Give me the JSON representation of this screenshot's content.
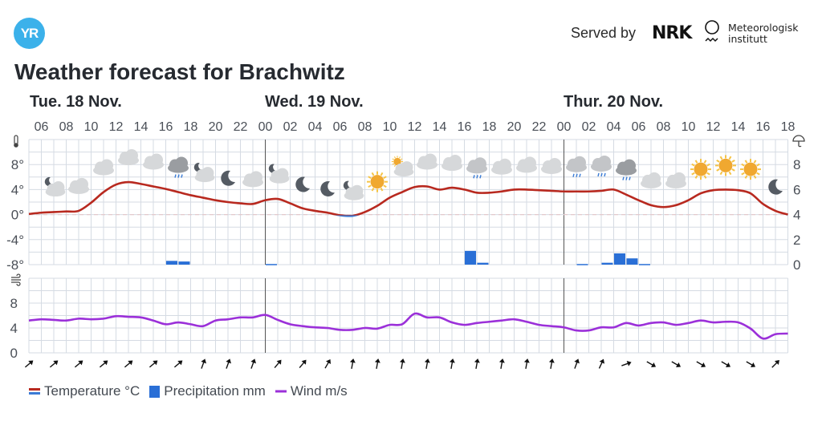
{
  "header": {
    "logo_text": "YR",
    "served_by": "Served by",
    "nrk_logo": "NRK",
    "met_logo_line1": "Meteorologisk",
    "met_logo_line2": "institutt",
    "title": "Weather forecast for Brachwitz"
  },
  "days": [
    "Tue. 18 Nov.",
    "Wed. 19 Nov.",
    "Thur. 20 Nov."
  ],
  "legend": {
    "temperature": "Temperature °C",
    "precipitation": "Precipitation mm",
    "wind": "Wind m/s"
  },
  "colors": {
    "temp_positive": "#b8291f",
    "temp_negative": "#3a7bd5",
    "precipitation": "#2a6fd6",
    "wind": "#9b30d9",
    "grid": "#d5dbe3",
    "logo": "#3bb1ea"
  },
  "chart_data": {
    "type": "line",
    "title": "Weather forecast for Brachwitz",
    "x_start": "Tue 18 Nov 05:00",
    "x_step_hours": 1,
    "hour_tick_labels": [
      "06",
      "08",
      "10",
      "12",
      "14",
      "16",
      "18",
      "20",
      "22",
      "00",
      "02",
      "04",
      "06",
      "08",
      "10",
      "12",
      "14",
      "16",
      "18",
      "20",
      "22",
      "00",
      "02",
      "04",
      "06",
      "08",
      "10",
      "12",
      "14",
      "16",
      "18"
    ],
    "temperature": {
      "name": "Temperature °C",
      "ylim": [
        -8,
        12
      ],
      "tick_labels": [
        "8°",
        "4°",
        "0°",
        "-4°",
        "-8°"
      ],
      "values": [
        0.1,
        0.3,
        0.4,
        0.5,
        0.6,
        1.9,
        3.6,
        4.8,
        5.2,
        4.9,
        4.5,
        4.1,
        3.6,
        3.1,
        2.7,
        2.3,
        2.0,
        1.8,
        1.7,
        2.3,
        2.5,
        1.8,
        1.0,
        0.6,
        0.3,
        -0.1,
        -0.2,
        0.4,
        1.4,
        2.7,
        3.6,
        4.4,
        4.5,
        4.0,
        4.3,
        4.0,
        3.5,
        3.5,
        3.7,
        4.0,
        4.0,
        3.9,
        3.8,
        3.7,
        3.7,
        3.7,
        3.8,
        4.0,
        3.2,
        2.3,
        1.5,
        1.2,
        1.5,
        2.3,
        3.4,
        3.9,
        4.0,
        3.9,
        3.4,
        1.7,
        0.6,
        0.0
      ]
    },
    "precipitation": {
      "name": "Precipitation mm",
      "ylim": [
        0,
        10
      ],
      "tick_labels": [
        "8",
        "6",
        "4",
        "2",
        "0"
      ],
      "bars": [
        {
          "hour_index": 11,
          "value": 0.3
        },
        {
          "hour_index": 12,
          "value": 0.25
        },
        {
          "hour_index": 19,
          "value": 0.05
        },
        {
          "hour_index": 35,
          "value": 1.1
        },
        {
          "hour_index": 36,
          "value": 0.15
        },
        {
          "hour_index": 44,
          "value": 0.05
        },
        {
          "hour_index": 46,
          "value": 0.15
        },
        {
          "hour_index": 47,
          "value": 0.9
        },
        {
          "hour_index": 48,
          "value": 0.5
        },
        {
          "hour_index": 49,
          "value": 0.05
        }
      ]
    },
    "wind": {
      "name": "Wind m/s",
      "ylim": [
        0,
        12
      ],
      "tick_labels": [
        "8",
        "4",
        "0"
      ],
      "values": [
        5.2,
        5.4,
        5.3,
        5.2,
        5.5,
        5.4,
        5.5,
        5.9,
        5.8,
        5.7,
        5.2,
        4.6,
        4.9,
        4.6,
        4.3,
        5.2,
        5.4,
        5.7,
        5.7,
        6.1,
        5.3,
        4.6,
        4.3,
        4.1,
        4.0,
        3.7,
        3.7,
        4.0,
        3.9,
        4.5,
        4.6,
        6.3,
        5.7,
        5.7,
        4.9,
        4.5,
        4.8,
        5.0,
        5.2,
        5.4,
        5.0,
        4.5,
        4.3,
        4.1,
        3.6,
        3.6,
        4.1,
        4.1,
        4.8,
        4.4,
        4.8,
        4.9,
        4.5,
        4.8,
        5.2,
        4.9,
        5.0,
        4.9,
        3.9,
        2.3,
        3.0,
        3.1
      ],
      "arrow_direction_deg": [
        50,
        50,
        50,
        50,
        50,
        50,
        50,
        20,
        20,
        20,
        40,
        40,
        30,
        10,
        10,
        10,
        10,
        10,
        10,
        10,
        10,
        10,
        20,
        25,
        70,
        120,
        120,
        120,
        120,
        120,
        45
      ]
    },
    "symbols": [
      "partly-cloudy-night",
      "cloudy",
      "cloudy",
      "cloudy",
      "cloudy",
      "rain",
      "partly-cloudy-night",
      "clear-night",
      "cloudy",
      "partly-cloudy-night",
      "clear-night",
      "clear-night",
      "partly-cloudy-night",
      "sun",
      "partly-cloudy-day",
      "cloudy",
      "cloudy",
      "light-rain",
      "cloudy",
      "cloudy",
      "cloudy",
      "light-rain",
      "light-rain",
      "rain",
      "cloudy",
      "cloudy",
      "sun",
      "sun",
      "sun",
      "clear-night"
    ]
  }
}
